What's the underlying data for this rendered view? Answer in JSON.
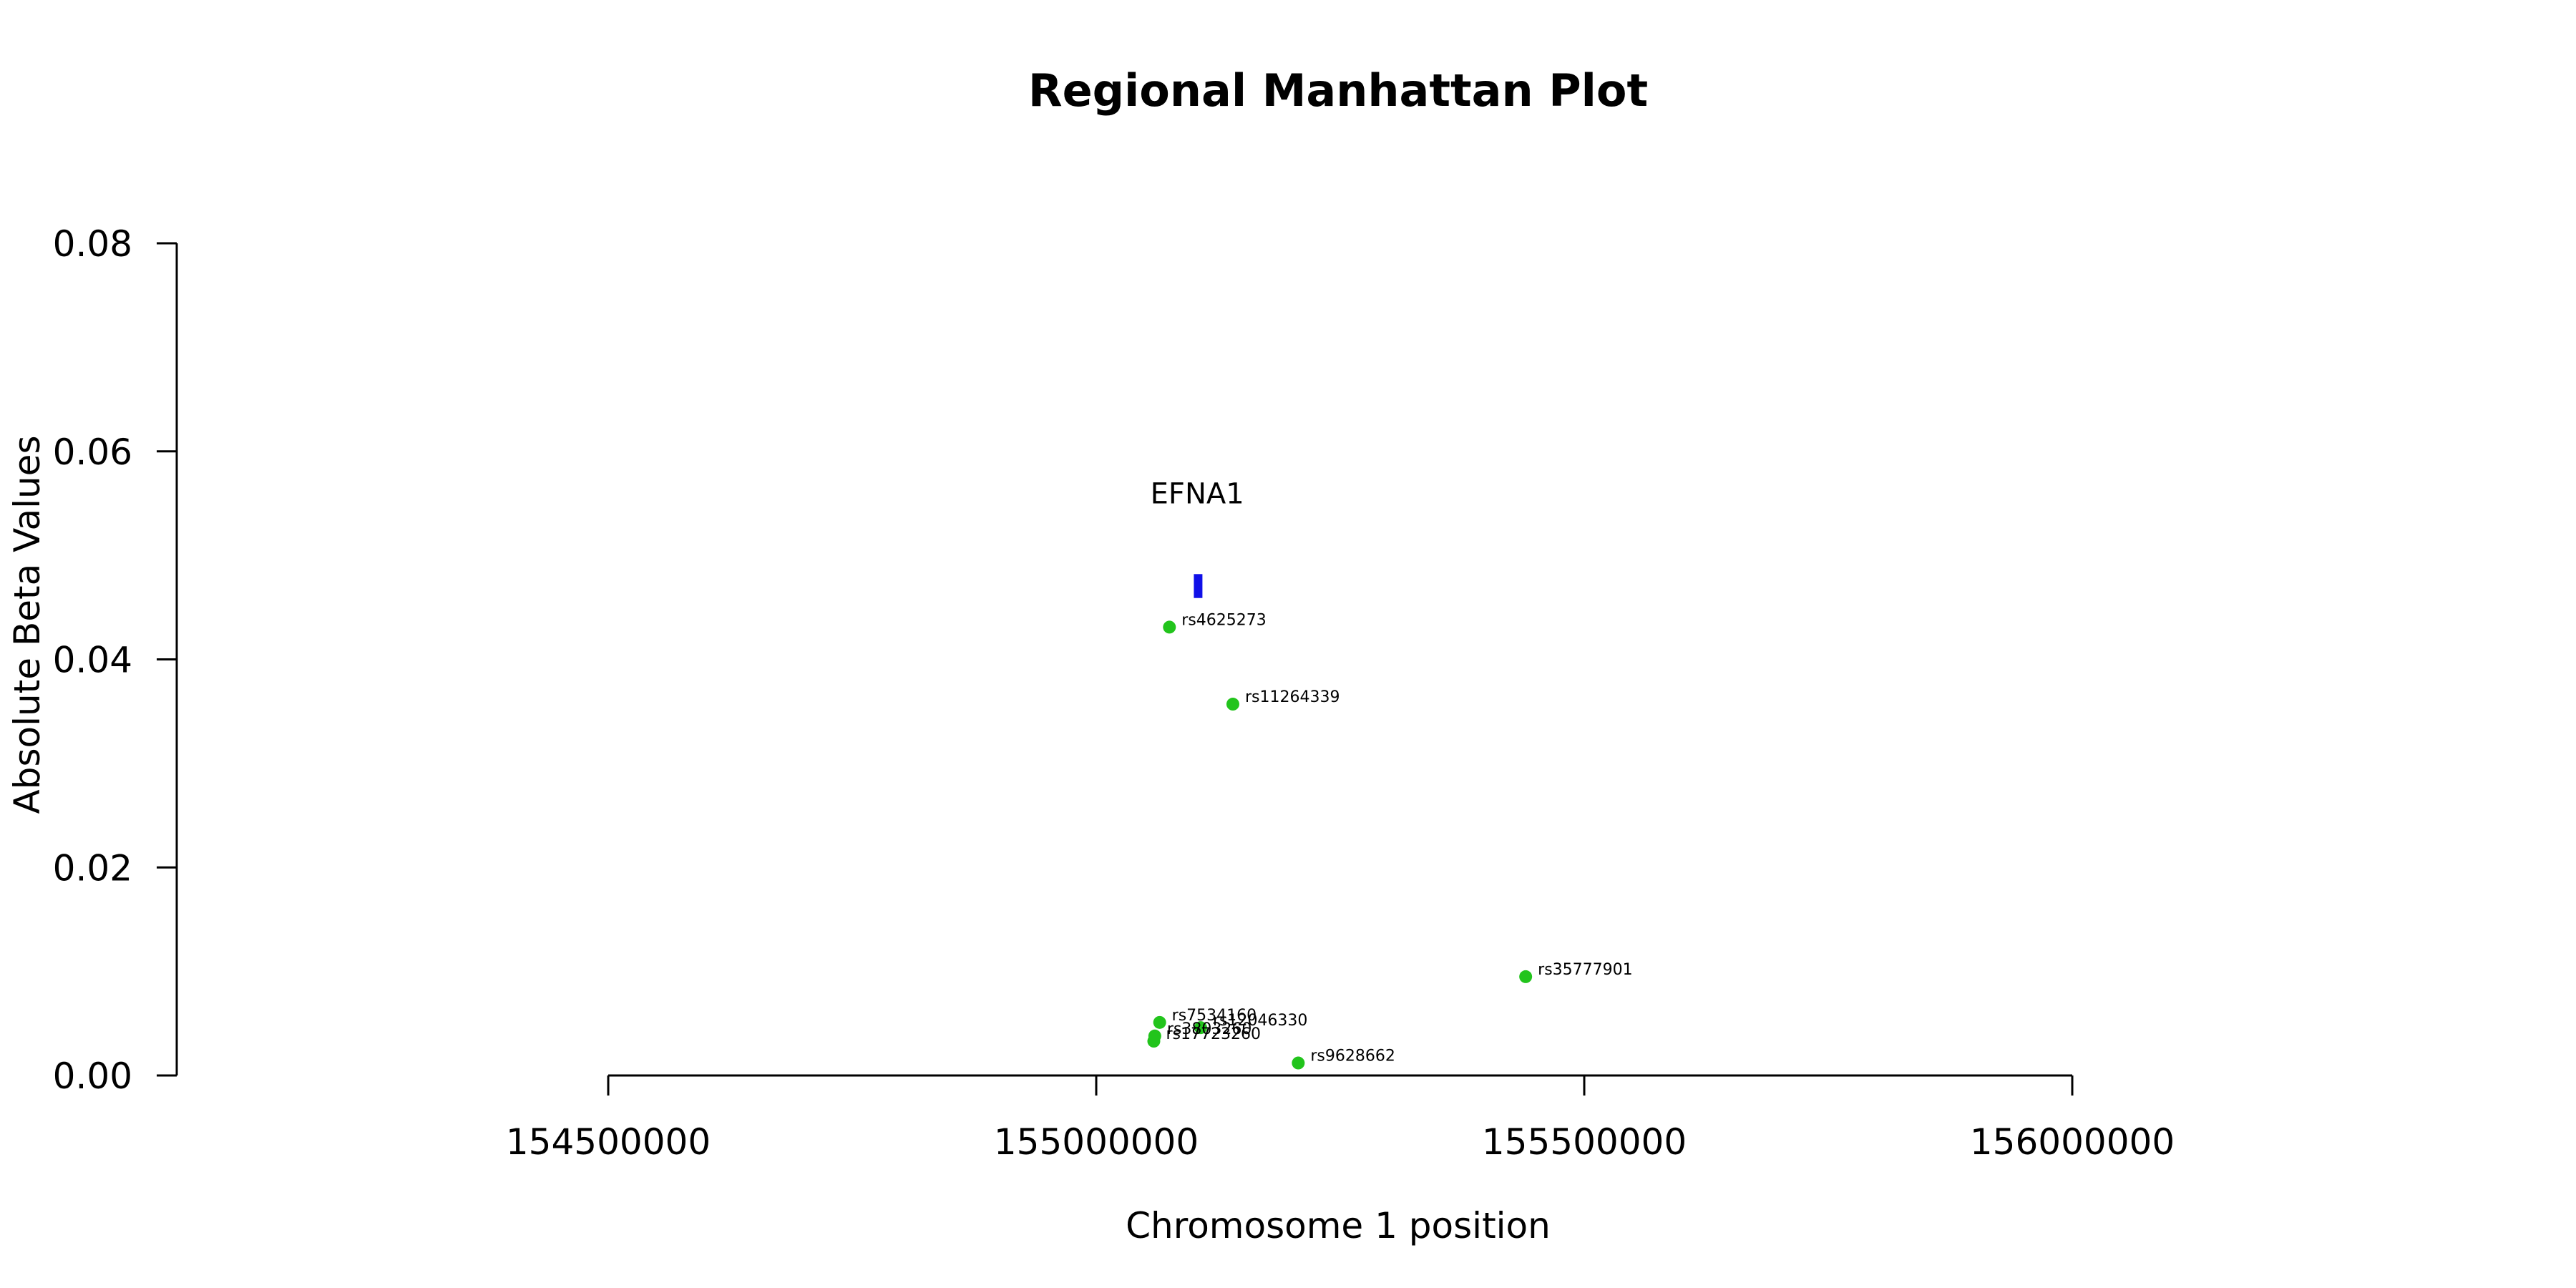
{
  "chart_data": {
    "type": "scatter",
    "title": "Regional Manhattan Plot",
    "xlabel": "Chromosome 1 position",
    "ylabel": "Absolute Beta Values",
    "xlim": [
      154500000,
      156000000
    ],
    "ylim": [
      0,
      0.08
    ],
    "x_ticks": [
      154500000,
      155000000,
      155500000,
      156000000
    ],
    "y_ticks": [
      "0.00",
      "0.02",
      "0.04",
      "0.06",
      "0.08"
    ],
    "grid": false,
    "point_color": "#22c41c",
    "gene": {
      "name": "EFNA1",
      "start": 155100000,
      "end": 155107000,
      "y_low": 0.0459,
      "y_high": 0.0482,
      "label_y": 0.055,
      "color": "#1010e8"
    },
    "points": [
      {
        "label": "rs4625273",
        "x": 155075000,
        "y": 0.0431
      },
      {
        "label": "rs11264339",
        "x": 155140000,
        "y": 0.0357
      },
      {
        "label": "rs35777901",
        "x": 155440000,
        "y": 0.0095
      },
      {
        "label": "rs7534160",
        "x": 155065000,
        "y": 0.0051
      },
      {
        "label": "rs12046330",
        "x": 155107000,
        "y": 0.0046
      },
      {
        "label": "rs3803260",
        "x": 155060000,
        "y": 0.0038
      },
      {
        "label": "rs17723260",
        "x": 155059000,
        "y": 0.0033
      },
      {
        "label": "rs9628662",
        "x": 155207000,
        "y": 0.0012
      }
    ]
  }
}
